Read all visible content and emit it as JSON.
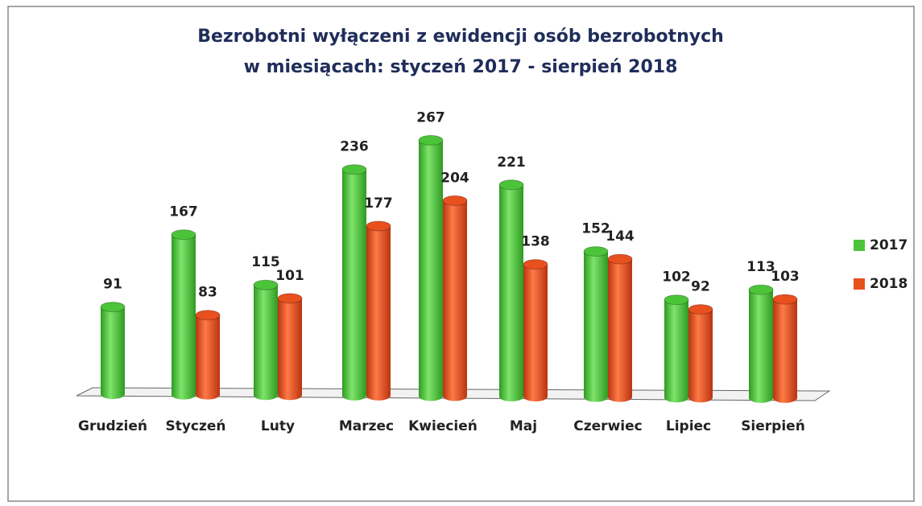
{
  "chart_data": {
    "type": "bar",
    "title_lines": [
      "Bezrobotni wyłączeni z ewidencji osób bezrobotnych",
      "w miesiącach: styczeń 2017 - sierpień 2018"
    ],
    "categories": [
      "Grudzień",
      "Styczeń",
      "Luty",
      "Marzec",
      "Kwiecień",
      "Maj",
      "Czerwiec",
      "Lipiec",
      "Sierpień"
    ],
    "series": [
      {
        "name": "2017",
        "color": "#4cc43a",
        "values": [
          91,
          167,
          115,
          236,
          267,
          221,
          152,
          102,
          113
        ]
      },
      {
        "name": "2018",
        "color": "#e8501e",
        "values": [
          null,
          83,
          101,
          177,
          204,
          138,
          144,
          92,
          103
        ]
      }
    ],
    "legend": "right"
  }
}
